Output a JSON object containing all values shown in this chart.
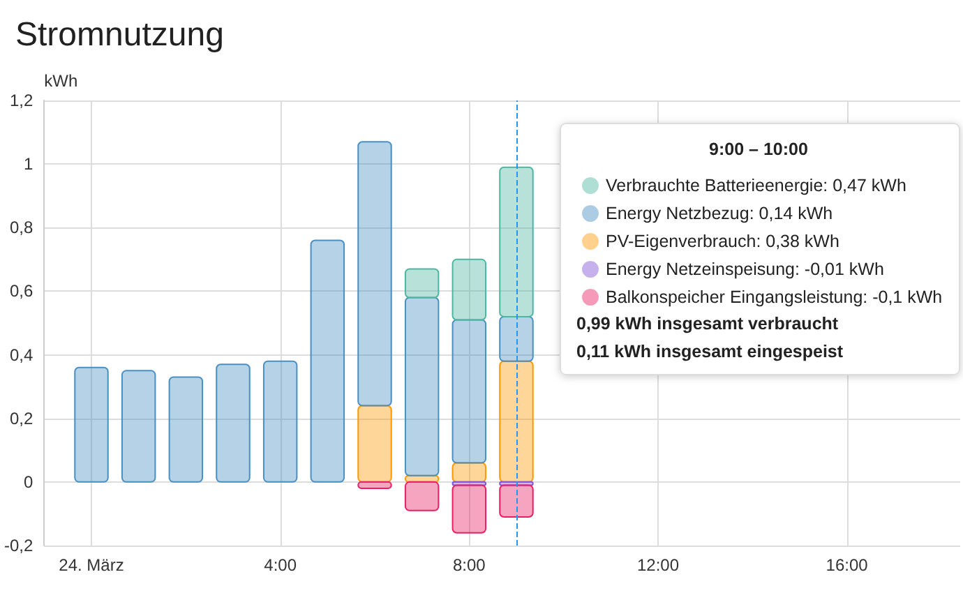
{
  "chart_data": {
    "type": "bar",
    "title": "Stromnutzung",
    "ylabel": "kWh",
    "stacked": true,
    "x": [
      "--03-24T00:00",
      "--03-24T01:00",
      "--03-24T02:00",
      "--03-24T03:00",
      "--03-24T04:00",
      "--03-24T05:00",
      "--03-24T06:00",
      "--03-24T07:00",
      "--03-24T08:00",
      "--03-24T09:00"
    ],
    "xlim": [
      "--03-23T23:00",
      "--03-24T18:24"
    ],
    "xticks": [
      {
        "value": "--03-24T00:00",
        "label": "24. März"
      },
      {
        "value": "--03-24T04:00",
        "label": "4:00"
      },
      {
        "value": "--03-24T08:00",
        "label": "8:00"
      },
      {
        "value": "--03-24T12:00",
        "label": "12:00"
      },
      {
        "value": "--03-24T16:00",
        "label": "16:00"
      }
    ],
    "ylim": [
      -0.2,
      1.2
    ],
    "yticks": [
      {
        "value": -0.2,
        "label": "-0,2"
      },
      {
        "value": 0,
        "label": "0"
      },
      {
        "value": 0.2,
        "label": "0,2"
      },
      {
        "value": 0.4,
        "label": "0,4"
      },
      {
        "value": 0.6,
        "label": "0,6"
      },
      {
        "value": 0.8,
        "label": "0,8"
      },
      {
        "value": 1,
        "label": "1"
      },
      {
        "value": 1.2,
        "label": "1,2"
      }
    ],
    "series": [
      {
        "name": "PV-Eigenverbrauch",
        "color": "#ff9800",
        "values": [
          null,
          null,
          null,
          null,
          null,
          null,
          0.24,
          0.02,
          0.06,
          0.38
        ]
      },
      {
        "name": "Energy Netzbezug",
        "color": "#488fc2",
        "values": [
          0.36,
          0.35,
          0.33,
          0.37,
          0.38,
          0.76,
          0.83,
          0.56,
          0.45,
          0.14
        ]
      },
      {
        "name": "Verbrauchte Batterieenergie",
        "color": "#4db6a0",
        "values": [
          null,
          null,
          null,
          null,
          null,
          null,
          null,
          0.09,
          0.19,
          0.47
        ]
      },
      {
        "name": "Energy Netzeinspeisung",
        "color": "#8353d4",
        "values": [
          null,
          null,
          null,
          null,
          null,
          null,
          null,
          null,
          -0.01,
          -0.01
        ]
      },
      {
        "name": "Balkonspeicher Eingangsleistung",
        "color": "#e91e63",
        "values": [
          null,
          null,
          null,
          null,
          null,
          null,
          -0.02,
          -0.09,
          -0.15,
          -0.1
        ]
      }
    ],
    "ref_lines": [
      {
        "axis": "x",
        "value": "--03-24T09:00",
        "color": "#2196f3",
        "line_style": "dashed"
      }
    ],
    "annotations": [
      "9:00 – 10:00",
      ": 0,47 kWh",
      ": 0,14 kWh",
      ": 0,38 kWh",
      ": -0,01 kWh",
      ": -0,1 kWh",
      "0,99 kWh insgesamt verbraucht",
      "0,11 kWh insgesamt eingespeist"
    ],
    "grid": true,
    "legend": "top right"
  }
}
